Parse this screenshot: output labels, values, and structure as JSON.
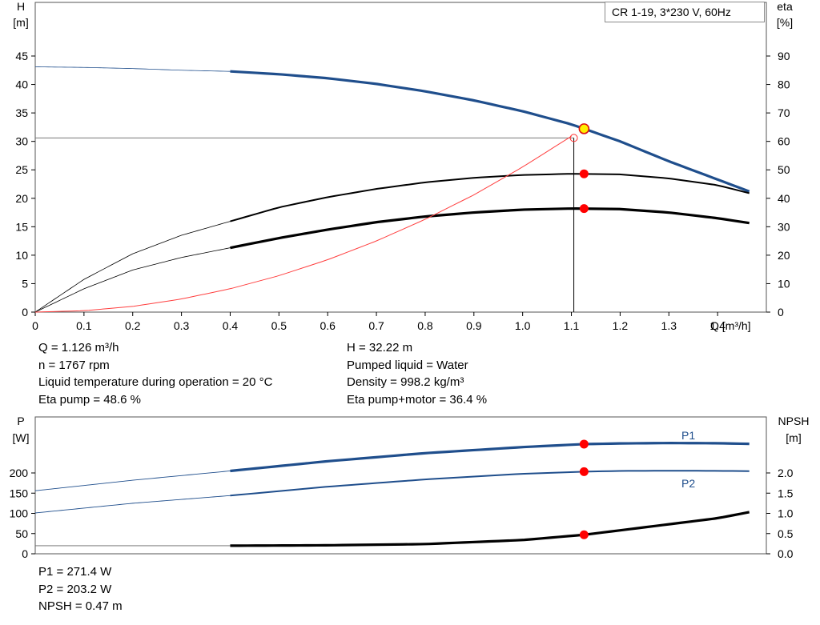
{
  "chart_data": [
    {
      "type": "line",
      "panel": "head-efficiency",
      "tag": "CR 1-19, 3*230 V, 60Hz",
      "left_axis": {
        "title": "H",
        "unit": "[m]",
        "range": [
          0,
          45
        ],
        "ticks": [
          0,
          5,
          10,
          15,
          20,
          25,
          30,
          35,
          40,
          45
        ]
      },
      "right_axis": {
        "title": "eta",
        "unit": "[%]",
        "range": [
          0,
          90
        ],
        "ticks": [
          0,
          10,
          20,
          30,
          40,
          50,
          60,
          70,
          80,
          90
        ]
      },
      "x_axis": {
        "unit": "Q [m³/h]",
        "range": [
          0,
          1.5
        ],
        "ticks": [
          "0",
          "0.1",
          "0.2",
          "0.3",
          "0.4",
          "0.5",
          "0.6",
          "0.7",
          "0.8",
          "0.9",
          "1.0",
          "1.1",
          "1.2",
          "1.3",
          "1.4"
        ]
      },
      "grid": false,
      "series": [
        {
          "axis": "left",
          "color": "#1f4e8c",
          "x": [
            0,
            0.1,
            0.2,
            0.3,
            0.4,
            0.5,
            0.6,
            0.7,
            0.8,
            0.9,
            1.0,
            1.1,
            1.2,
            1.3,
            1.4,
            1.465
          ],
          "y": [
            43.1,
            43.0,
            42.8,
            42.5,
            42.3,
            41.8,
            41.1,
            40.1,
            38.8,
            37.2,
            35.3,
            33.0,
            30.0,
            26.5,
            23.3,
            21.2
          ]
        },
        {
          "axis": "right",
          "color": "#000000",
          "x": [
            0,
            0.1,
            0.2,
            0.3,
            0.4,
            0.5,
            0.6,
            0.7,
            0.8,
            0.9,
            1.0,
            1.1,
            1.2,
            1.3,
            1.4,
            1.465
          ],
          "y": [
            0,
            11.5,
            20.5,
            27.0,
            31.9,
            36.8,
            40.4,
            43.3,
            45.6,
            47.2,
            48.2,
            48.6,
            48.4,
            47.0,
            44.6,
            41.8
          ]
        },
        {
          "axis": "right",
          "color": "#000000",
          "x": [
            0,
            0.1,
            0.2,
            0.3,
            0.4,
            0.5,
            0.6,
            0.7,
            0.8,
            0.9,
            1.0,
            1.1,
            1.2,
            1.3,
            1.4,
            1.465
          ],
          "y": [
            0,
            8.2,
            14.8,
            19.2,
            22.6,
            26.0,
            29.0,
            31.6,
            33.6,
            35.0,
            36.0,
            36.4,
            36.2,
            35.0,
            33.0,
            31.3
          ]
        },
        {
          "axis": "left",
          "color": "#ff4040",
          "x": [
            0,
            0.1,
            0.2,
            0.3,
            0.4,
            0.5,
            0.6,
            0.7,
            0.8,
            0.9,
            1.0,
            1.1
          ],
          "y": [
            0,
            0.25,
            1.0,
            2.3,
            4.1,
            6.4,
            9.2,
            12.5,
            16.3,
            20.6,
            25.5,
            30.9
          ]
        }
      ],
      "duty_point": {
        "Q": 1.126,
        "H": 32.22,
        "eta_pump": 48.6,
        "eta_pump_motor": 36.4
      },
      "system_point": {
        "Q": 1.105,
        "H": 30.6
      }
    },
    {
      "type": "line",
      "panel": "power-npsh",
      "left_axis": {
        "title": "P",
        "unit": "[W]",
        "range": [
          0,
          290
        ],
        "ticks": [
          0,
          50,
          100,
          150,
          200
        ]
      },
      "right_axis": {
        "title": "NPSH",
        "unit": "[m]",
        "range": [
          0,
          2.9
        ],
        "ticks": [
          "0.0",
          "0.5",
          "1.0",
          "1.5",
          "2.0"
        ]
      },
      "x_axis": {
        "range": [
          0,
          1.5
        ]
      },
      "grid": false,
      "series": [
        {
          "name": "P1",
          "axis": "left",
          "color": "#1f4e8c",
          "x": [
            0,
            0.2,
            0.4,
            0.6,
            0.8,
            1.0,
            1.126,
            1.2,
            1.3,
            1.4,
            1.465
          ],
          "y": [
            156,
            182,
            205,
            229,
            249,
            264,
            271.4,
            273,
            274,
            273.5,
            272
          ]
        },
        {
          "name": "P2",
          "axis": "left",
          "color": "#1f4e8c",
          "x": [
            0,
            0.2,
            0.4,
            0.6,
            0.8,
            1.0,
            1.126,
            1.2,
            1.3,
            1.4,
            1.465
          ],
          "y": [
            101,
            125,
            144,
            166,
            184,
            198,
            203.2,
            205,
            205.5,
            205.2,
            204.5
          ]
        },
        {
          "name": "NPSH",
          "axis": "right",
          "color": "#000000",
          "x": [
            0,
            0.4,
            0.6,
            0.8,
            1.0,
            1.126,
            1.2,
            1.3,
            1.4,
            1.465
          ],
          "y": [
            0.2,
            0.2,
            0.21,
            0.24,
            0.34,
            0.47,
            0.58,
            0.73,
            0.88,
            1.03
          ]
        }
      ],
      "duty_point": {
        "Q": 1.126,
        "P1": 271.4,
        "P2": 203.2,
        "NPSH": 0.47
      }
    }
  ],
  "info": {
    "q": "Q = 1.126 m³/h",
    "n": "n = 1767 rpm",
    "temp": "Liquid temperature during operation = 20 °C",
    "eta_pump": "Eta pump = 48.6 %",
    "h": "H = 32.22 m",
    "liquid": "Pumped liquid = Water",
    "density": "Density = 998.2 kg/m³",
    "eta_pm": "Eta pump+motor = 36.4 %",
    "p1": "P1 = 271.4 W",
    "p2": "P2 = 203.2 W",
    "npsh": "NPSH = 0.47 m"
  }
}
